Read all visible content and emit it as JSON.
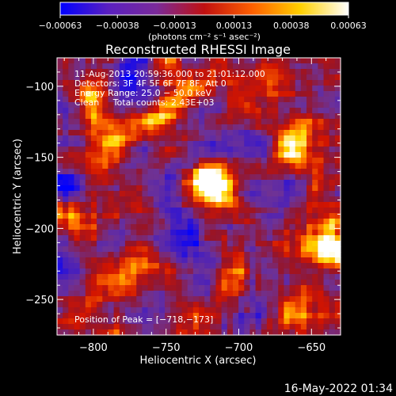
{
  "chart_data": {
    "type": "heatmap",
    "title": "Reconstructed RHESSI Image",
    "xlabel": "Heliocentric X (arcsec)",
    "ylabel": "Heliocentric Y (arcsec)",
    "xlim": [
      -825,
      -630
    ],
    "ylim": [
      -275,
      -80
    ],
    "x_ticks": [
      {
        "value": -800,
        "label": "−800"
      },
      {
        "value": -750,
        "label": "−750"
      },
      {
        "value": -700,
        "label": "−700"
      },
      {
        "value": -650,
        "label": "−650"
      }
    ],
    "y_ticks": [
      {
        "value": -100,
        "label": "−100"
      },
      {
        "value": -150,
        "label": "−150"
      },
      {
        "value": -200,
        "label": "−200"
      },
      {
        "value": -250,
        "label": "−250"
      }
    ],
    "colorbar": {
      "range": [
        -0.00063,
        0.00063
      ],
      "tick_values": [
        -0.00063,
        -0.00038,
        -0.00013,
        0.00013,
        0.00038,
        0.00063
      ],
      "tick_labels": [
        "−0.00063",
        "−0.00038",
        "−0.00013",
        "0.00013",
        "0.00038",
        "0.00063"
      ],
      "colors": [
        "#0000ff",
        "#5a20c0",
        "#7a2a9a",
        "#c01010",
        "#ff6000",
        "#ffd000",
        "#ffffff"
      ]
    },
    "units_label": "(photons cm⁻² s⁻¹ asec⁻²)",
    "annotations": [
      "11‑Aug‑2013 20:59:36.000 to 21:01:12.000",
      "Detectors: 3F 4F 5F 6F 7F 8F, Att 0",
      "Energy Range: 25.0 − 50.0 keV",
      "Clean     Total counts: 2.43E+03"
    ],
    "peak_label": "Position of Peak = [−718,−173]",
    "peak": [
      -718,
      -173
    ],
    "hotspots": [
      {
        "x": -718,
        "y": -173,
        "amp": 1.0
      },
      {
        "x": -790,
        "y": -140,
        "amp": 0.55
      },
      {
        "x": -660,
        "y": -145,
        "amp": 0.75
      },
      {
        "x": -640,
        "y": -210,
        "amp": 0.8
      },
      {
        "x": -755,
        "y": -125,
        "amp": 0.45
      },
      {
        "x": -800,
        "y": -110,
        "amp": 0.4
      },
      {
        "x": -775,
        "y": -235,
        "amp": 0.5
      },
      {
        "x": -700,
        "y": -230,
        "amp": 0.4
      },
      {
        "x": -660,
        "y": -255,
        "amp": 0.45
      },
      {
        "x": -810,
        "y": -195,
        "amp": 0.35
      },
      {
        "x": -735,
        "y": -100,
        "amp": 0.3
      },
      {
        "x": -680,
        "y": -100,
        "amp": 0.45
      }
    ]
  },
  "footer": {
    "timestamp": "16‑May‑2022 01:34"
  }
}
